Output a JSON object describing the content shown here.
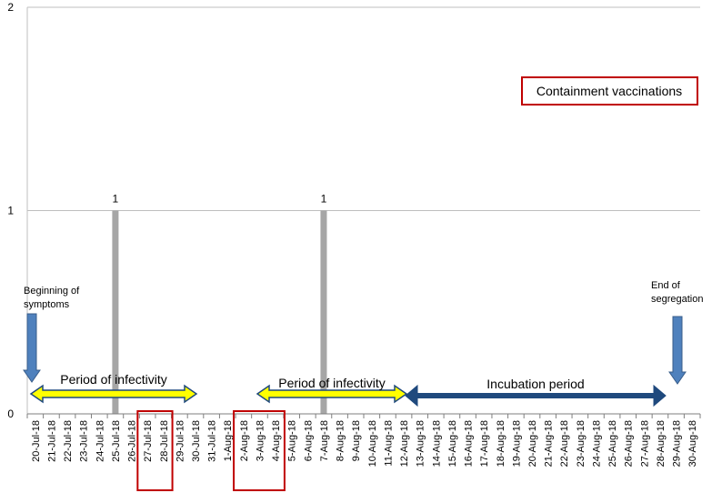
{
  "chart_data": {
    "type": "bar",
    "categories": [
      "20-Jul-18",
      "21-Jul-18",
      "22-Jul-18",
      "23-Jul-18",
      "24-Jul-18",
      "25-Jul-18",
      "26-Jul-18",
      "27-Jul-18",
      "28-Jul-18",
      "29-Jul-18",
      "30-Jul-18",
      "31-Jul-18",
      "1-Aug-18",
      "2-Aug-18",
      "3-Aug-18",
      "4-Aug-18",
      "5-Aug-18",
      "6-Aug-18",
      "7-Aug-18",
      "8-Aug-18",
      "9-Aug-18",
      "10-Aug-18",
      "11-Aug-18",
      "12-Aug-18",
      "13-Aug-18",
      "14-Aug-18",
      "15-Aug-18",
      "16-Aug-18",
      "17-Aug-18",
      "18-Aug-18",
      "19-Aug-18",
      "20-Aug-18",
      "21-Aug-18",
      "22-Aug-18",
      "23-Aug-18",
      "24-Aug-18",
      "25-Aug-18",
      "26-Aug-18",
      "27-Aug-18",
      "28-Aug-18",
      "29-Aug-18",
      "30-Aug-18"
    ],
    "values": [
      0,
      0,
      0,
      0,
      0,
      1,
      0,
      0,
      0,
      0,
      0,
      0,
      0,
      0,
      0,
      0,
      0,
      0,
      1,
      0,
      0,
      0,
      0,
      0,
      0,
      0,
      0,
      0,
      0,
      0,
      0,
      0,
      0,
      0,
      0,
      0,
      0,
      0,
      0,
      0,
      0,
      0
    ],
    "data_labels": [
      {
        "category": "25-Jul-18",
        "text": "1"
      },
      {
        "category": "7-Aug-18",
        "text": "1"
      }
    ],
    "ylim": [
      0,
      2
    ],
    "yticks": [
      "0",
      "1",
      "2"
    ],
    "grid": true,
    "bar_color": "#a6a6a6",
    "highlighted_categories": [
      [
        "27-Jul-18",
        "28-Jul-18"
      ],
      [
        "2-Aug-18",
        "3-Aug-18",
        "4-Aug-18"
      ]
    ],
    "highlight_color": "#c00000",
    "legend_box": {
      "text": "Containment vaccinations",
      "border_color": "#c00000"
    },
    "annotations": {
      "beginning": {
        "line1": "Beginning of",
        "line2": "symptoms",
        "arrow_color": "#4f81bd",
        "category": "20-Jul-18"
      },
      "end": {
        "line1": "End of",
        "line2": "segregation",
        "arrow_color": "#4f81bd",
        "category": "29-Aug-18"
      },
      "periods": [
        {
          "text": "Period of infectivity",
          "from": "20-Jul-18",
          "to": "30-Jul-18",
          "fill": "#ffff00",
          "stroke": "#1f497d"
        },
        {
          "text": "Period of infectivity",
          "from": "2-Aug-18",
          "to": "12-Aug-18",
          "fill": "#ffff00",
          "stroke": "#1f497d"
        },
        {
          "text": "Incubation period",
          "from": "12-Aug-18",
          "to": "28-Aug-18",
          "fill": "#1f497d",
          "stroke": "#1f497d"
        }
      ]
    }
  }
}
